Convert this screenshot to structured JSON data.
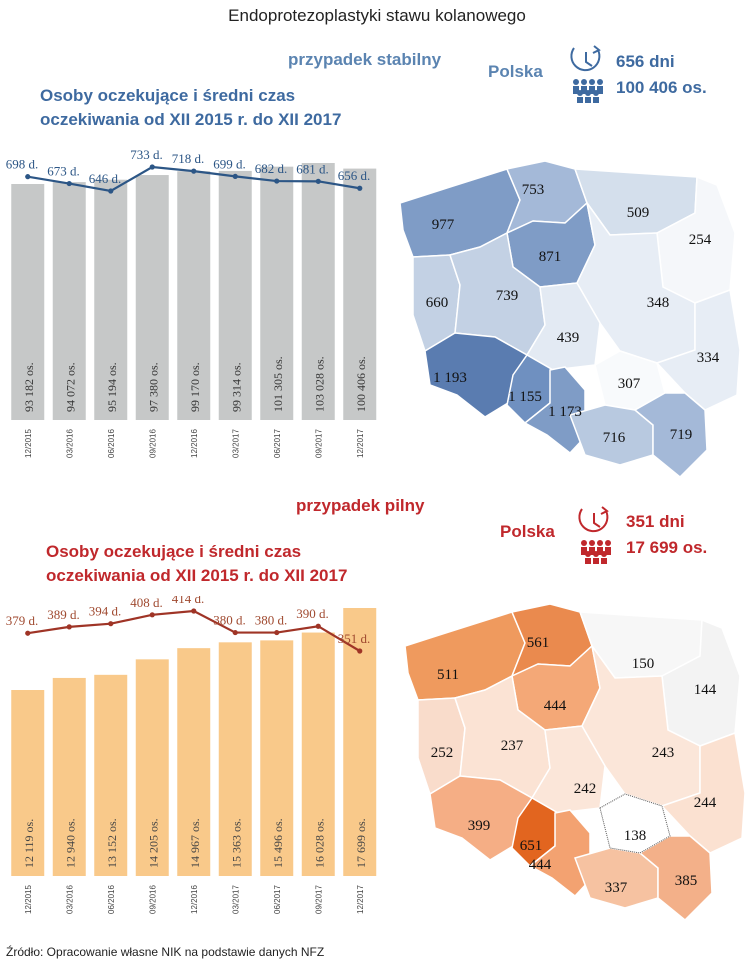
{
  "page_title": "Endoprotezoplastyki stawu kolanowego",
  "source": "Źródło: Opracowanie własne NIK na podstawie danych NFZ",
  "colors": {
    "stable_line": "#2c5686",
    "stable_bar": "#c6c8c8",
    "urgent_line": "#9f3426",
    "urgent_bar": "#f9c98a"
  },
  "stable": {
    "case_label": "przypadek stabilny",
    "region_label": "Polska",
    "days": "656 dni",
    "people": "100 406 os.",
    "chart_title_line1": "Osoby oczekujące i średni czas",
    "chart_title_line2": "oczekiwania od XII 2015 r. do XII 2017",
    "map_values": [
      "977",
      "753",
      "509",
      "254",
      "871",
      "660",
      "739",
      "348",
      "439",
      "334",
      "1 193",
      "1 155",
      "1 173",
      "307",
      "716",
      "719"
    ]
  },
  "urgent": {
    "case_label": "przypadek pilny",
    "region_label": "Polska",
    "days": "351 dni",
    "people": "17 699 os.",
    "chart_title_line1": "Osoby oczekujące i średni czas",
    "chart_title_line2": "oczekiwania od XII 2015 r. do XII 2017",
    "map_values": [
      "511",
      "561",
      "150",
      "144",
      "444",
      "252",
      "237",
      "243",
      "242",
      "244",
      "399",
      "651",
      "444",
      "138",
      "337",
      "385"
    ]
  },
  "chart_data": [
    {
      "type": "bar",
      "title": "Osoby oczekujące i średni czas oczekiwania od XII 2015 r. do XII 2017",
      "categories": [
        "12/2015",
        "03/2016",
        "06/2016",
        "09/2016",
        "12/2016",
        "03/2017",
        "06/2017",
        "09/2017",
        "12/2017"
      ],
      "series": [
        {
          "name": "Osoby oczekujące",
          "type": "bar",
          "values": [
            93182,
            94072,
            95194,
            97380,
            99170,
            99314,
            101305,
            103028,
            100406
          ],
          "labels": [
            "93 182 os.",
            "94 072 os.",
            "95 194 os.",
            "97 380 os.",
            "99 170 os.",
            "99 314 os.",
            "101 305 os.",
            "103 028 os.",
            "100 406 os."
          ]
        },
        {
          "name": "Średni czas oczekiwania",
          "type": "line",
          "values": [
            698,
            673,
            646,
            733,
            718,
            699,
            682,
            681,
            656
          ],
          "labels": [
            "698 d.",
            "673 d.",
            "646 d.",
            "733 d.",
            "718 d.",
            "699 d.",
            "682 d.",
            "681 d.",
            "656 d."
          ]
        }
      ]
    },
    {
      "type": "bar",
      "title": "Osoby oczekujące i średni czas oczekiwania od XII 2015 r. do XII 2017",
      "categories": [
        "12/2015",
        "03/2016",
        "06/2016",
        "09/2016",
        "12/2016",
        "03/2017",
        "06/2017",
        "09/2017",
        "12/2017"
      ],
      "series": [
        {
          "name": "Osoby oczekujące",
          "type": "bar",
          "values": [
            12119,
            12940,
            13152,
            14205,
            14967,
            15363,
            15496,
            16028,
            17699
          ],
          "labels": [
            "12 119 os.",
            "12 940 os.",
            "13 152 os.",
            "14 205 os.",
            "14 967 os.",
            "15 363 os.",
            "15 496 os.",
            "16 028 os.",
            "17 699 os."
          ]
        },
        {
          "name": "Średni czas oczekiwania",
          "type": "line",
          "values": [
            379,
            389,
            394,
            408,
            414,
            380,
            380,
            390,
            351
          ],
          "labels": [
            "379 d.",
            "389 d.",
            "394 d.",
            "408 d.",
            "414 d.",
            "380 d.",
            "380 d.",
            "390 d.",
            "351 d."
          ]
        }
      ]
    }
  ]
}
